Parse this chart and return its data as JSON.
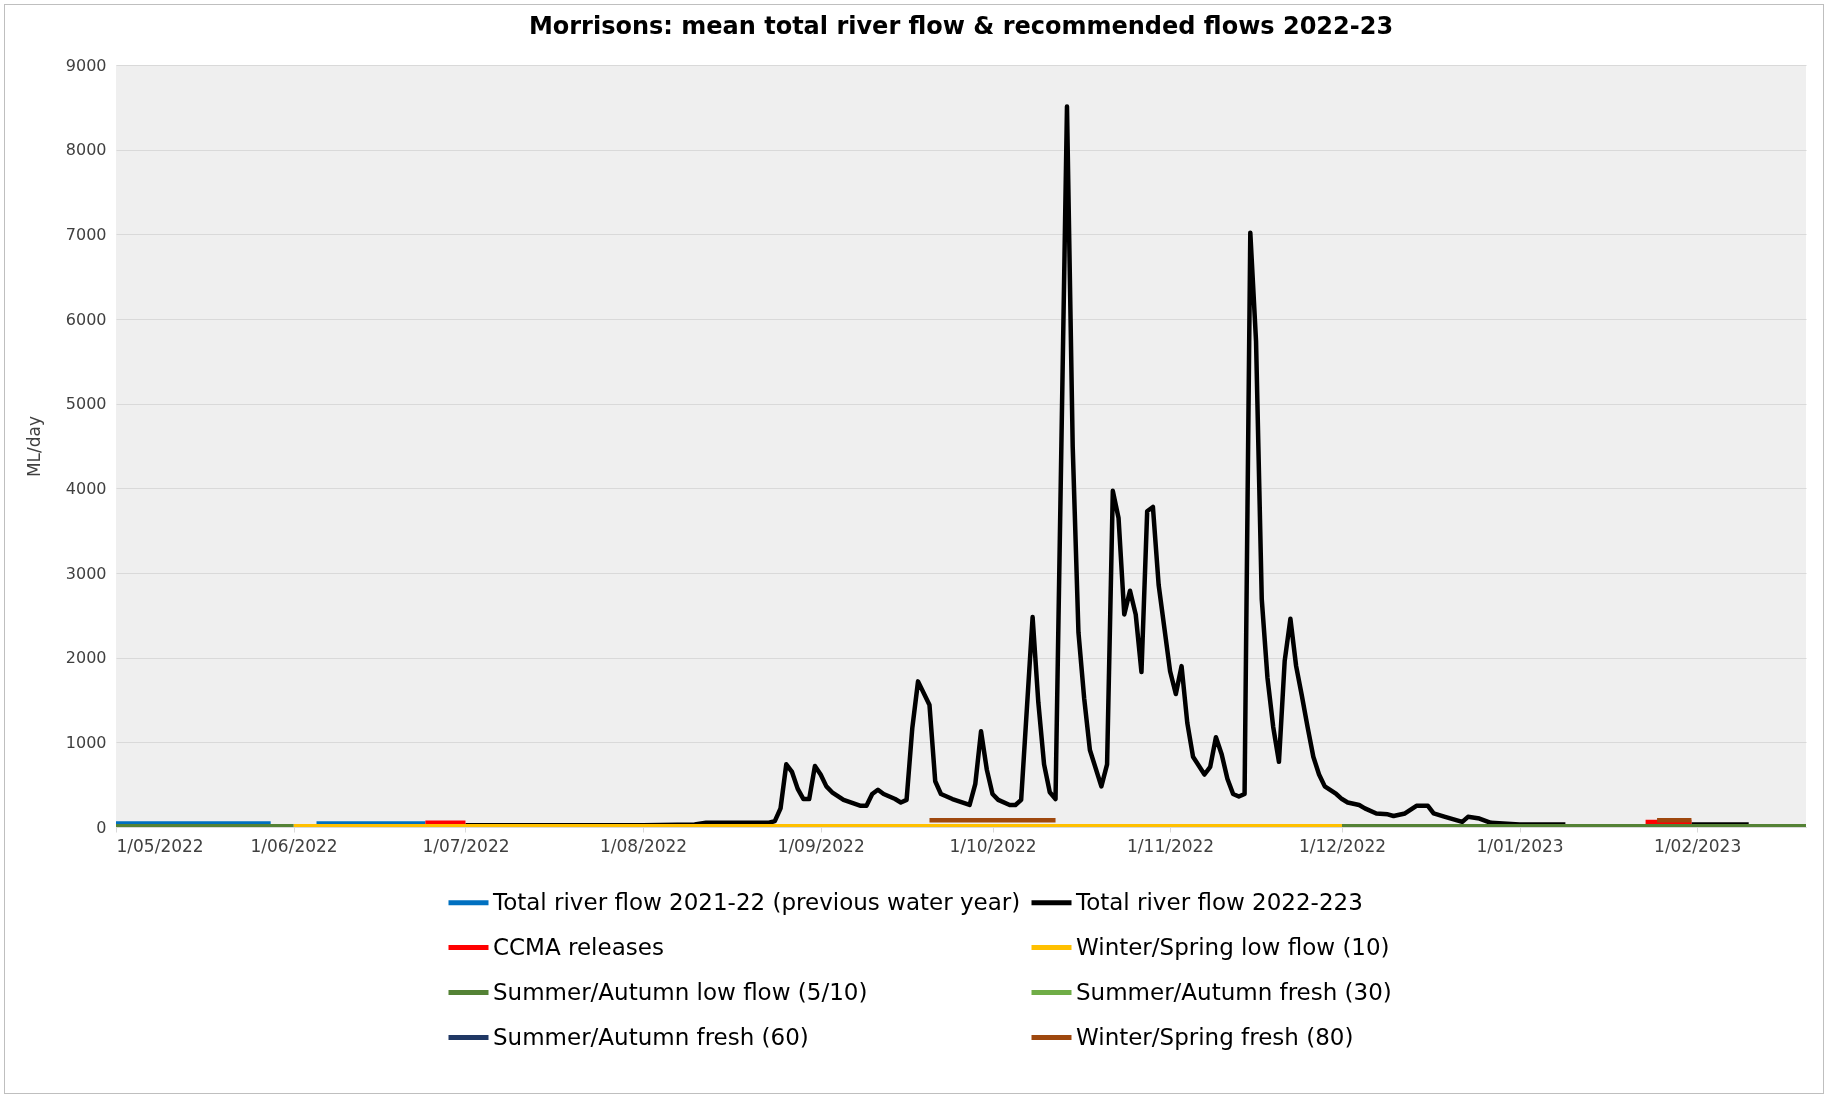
{
  "chart_data": {
    "type": "line",
    "title": "Morrisons: mean total river flow & recommended flows 2022-23",
    "ylabel": "ML/day",
    "xlim": [
      "2022-05-01",
      "2023-02-20"
    ],
    "xticks": [
      {
        "value": "2022-05-01",
        "label": "1/05/2022"
      },
      {
        "value": "2022-06-01",
        "label": "1/06/2022"
      },
      {
        "value": "2022-07-01",
        "label": "1/07/2022"
      },
      {
        "value": "2022-08-01",
        "label": "1/08/2022"
      },
      {
        "value": "2022-09-01",
        "label": "1/09/2022"
      },
      {
        "value": "2022-10-01",
        "label": "1/10/2022"
      },
      {
        "value": "2022-11-01",
        "label": "1/11/2022"
      },
      {
        "value": "2022-12-01",
        "label": "1/12/2022"
      },
      {
        "value": "2023-01-01",
        "label": "1/01/2023"
      },
      {
        "value": "2023-02-01",
        "label": "1/02/2023"
      }
    ],
    "ylim": [
      0,
      9000
    ],
    "yticks": [
      0,
      1000,
      2000,
      3000,
      4000,
      5000,
      6000,
      7000,
      8000,
      9000
    ],
    "grid": "y",
    "legend": "bottom",
    "series": [
      {
        "name": "Total river flow 2021-22 (previous water year)",
        "color": "#0070c0",
        "x": [
          "2022-05-01",
          "2022-05-28",
          "2022-05-29",
          "2022-06-05",
          "2022-06-24"
        ],
        "values": [
          40,
          40,
          null,
          40,
          40
        ]
      },
      {
        "name": "Total river flow 2022-223",
        "color": "#000000",
        "x": [
          "2022-07-01",
          "2022-07-15",
          "2022-08-01",
          "2022-08-10",
          "2022-08-12",
          "2022-08-22",
          "2022-08-23",
          "2022-08-24",
          "2022-08-25",
          "2022-08-26",
          "2022-08-27",
          "2022-08-28",
          "2022-08-29",
          "2022-08-30",
          "2022-08-31",
          "2022-09-01",
          "2022-09-02",
          "2022-09-03",
          "2022-09-05",
          "2022-09-08",
          "2022-09-09",
          "2022-09-10",
          "2022-09-11",
          "2022-09-12",
          "2022-09-14",
          "2022-09-15",
          "2022-09-16",
          "2022-09-17",
          "2022-09-18",
          "2022-09-20",
          "2022-09-21",
          "2022-09-22",
          "2022-09-24",
          "2022-09-27",
          "2022-09-28",
          "2022-09-29",
          "2022-09-30",
          "2022-10-01",
          "2022-10-02",
          "2022-10-04",
          "2022-10-05",
          "2022-10-06",
          "2022-10-08",
          "2022-10-09",
          "2022-10-10",
          "2022-10-11",
          "2022-10-12",
          "2022-10-14",
          "2022-10-15",
          "2022-10-16",
          "2022-10-17",
          "2022-10-18",
          "2022-10-20",
          "2022-10-21",
          "2022-10-22",
          "2022-10-23",
          "2022-10-24",
          "2022-10-25",
          "2022-10-26",
          "2022-10-27",
          "2022-10-28",
          "2022-10-29",
          "2022-10-30",
          "2022-11-01",
          "2022-11-02",
          "2022-11-03",
          "2022-11-04",
          "2022-11-05",
          "2022-11-07",
          "2022-11-08",
          "2022-11-09",
          "2022-11-10",
          "2022-11-11",
          "2022-11-12",
          "2022-11-13",
          "2022-11-14",
          "2022-11-15",
          "2022-11-16",
          "2022-11-17",
          "2022-11-18",
          "2022-11-19",
          "2022-11-20",
          "2022-11-21",
          "2022-11-22",
          "2022-11-23",
          "2022-11-24",
          "2022-11-25",
          "2022-11-26",
          "2022-11-27",
          "2022-11-28",
          "2022-11-30",
          "2022-12-01",
          "2022-12-02",
          "2022-12-04",
          "2022-12-05",
          "2022-12-07",
          "2022-12-09",
          "2022-12-10",
          "2022-12-12",
          "2022-12-14",
          "2022-12-16",
          "2022-12-17",
          "2022-12-19",
          "2022-12-22",
          "2022-12-23",
          "2022-12-25",
          "2022-12-27",
          "2023-01-01",
          "2023-01-09",
          "2023-01-10",
          "2023-01-31",
          "2023-02-10"
        ],
        "values": [
          20,
          20,
          20,
          30,
          50,
          50,
          50,
          70,
          220,
          740,
          650,
          450,
          330,
          330,
          720,
          620,
          480,
          410,
          320,
          250,
          250,
          390,
          440,
          390,
          330,
          290,
          320,
          1170,
          1720,
          1440,
          540,
          390,
          330,
          260,
          510,
          1130,
          680,
          390,
          320,
          260,
          260,
          320,
          2480,
          1470,
          740,
          410,
          330,
          8510,
          4490,
          2300,
          1520,
          910,
          480,
          740,
          3970,
          3650,
          2510,
          2790,
          2510,
          1830,
          3730,
          3780,
          2860,
          1840,
          1570,
          1900,
          1230,
          830,
          620,
          710,
          1060,
          860,
          570,
          390,
          360,
          390,
          7020,
          5740,
          2690,
          1760,
          1180,
          770,
          1960,
          2460,
          1900,
          1550,
          1180,
          830,
          620,
          480,
          390,
          330,
          290,
          260,
          220,
          160,
          150,
          130,
          160,
          250,
          250,
          160,
          120,
          60,
          120,
          100,
          50,
          30,
          30,
          null,
          30,
          30
        ]
      },
      {
        "name": "CCMA releases",
        "color": "#ff0000",
        "x": [
          "2022-06-24",
          "2022-07-01",
          "2022-07-02",
          "2023-01-23",
          "2023-01-31"
        ],
        "values": [
          50,
          50,
          null,
          60,
          60
        ]
      },
      {
        "name": "Winter/Spring low flow (10)",
        "color": "#ffc000",
        "x": [
          "2022-06-01",
          "2022-12-01"
        ],
        "values": [
          10,
          10
        ]
      },
      {
        "name": "Summer/Autumn low flow (5/10)",
        "color": "#548235",
        "x": [
          "2022-05-01",
          "2022-06-01",
          "2022-06-02",
          "2022-12-01",
          "2023-02-20"
        ],
        "values": [
          10,
          10,
          null,
          10,
          10
        ]
      },
      {
        "name": "Summer/Autumn fresh (30)",
        "color": "#70ad47"
      },
      {
        "name": "Summer/Autumn fresh (60)",
        "color": "#203864"
      },
      {
        "name": "Winter/Spring fresh (80)",
        "color": "#9e480e",
        "x": [
          "2022-09-20",
          "2022-10-12",
          "2022-10-13",
          "2023-01-25",
          "2023-01-31"
        ],
        "values": [
          80,
          80,
          null,
          80,
          80
        ]
      }
    ]
  }
}
